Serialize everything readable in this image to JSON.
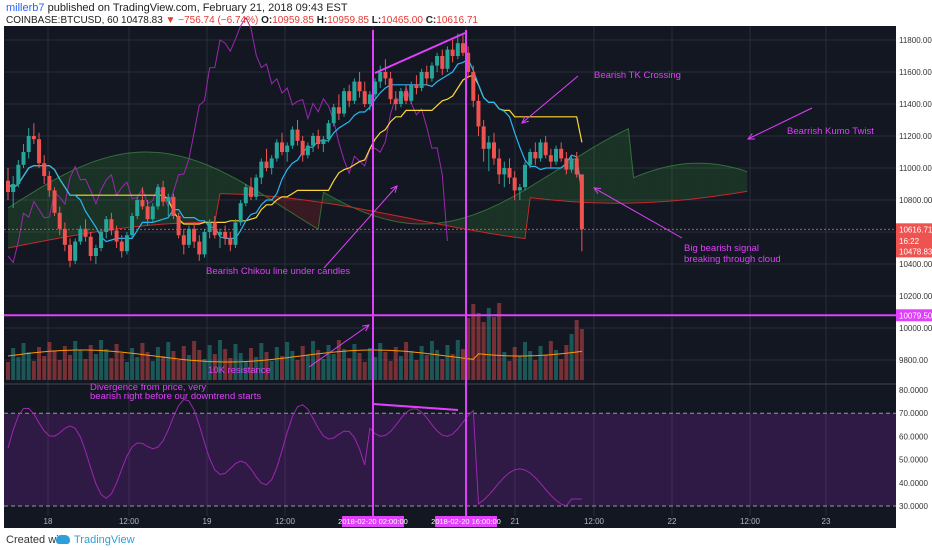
{
  "header": {
    "user": "millerb7",
    "published": "published on TradingView.com, February 21, 2018 09:43 EST",
    "symbol": "COINBASE:BTCUSD, 60",
    "last": "10478.83",
    "change": "−756.74 (−6.74%)",
    "o_label": "O:",
    "o": "10959.85",
    "h_label": "H:",
    "h": "10959.85",
    "l_label": "L:",
    "l": "10465.00",
    "c_label": "C:",
    "c": "10616.71"
  },
  "footer": {
    "created": "Created with",
    "brand": "TradingView"
  },
  "colors": {
    "background": "#131722",
    "up": "#26a69a",
    "down": "#ef5350",
    "annotation": "#e040fb",
    "tenkan": "#29b6f6",
    "kijun": "#fdd835",
    "senkou_b": "#c62828",
    "chikou": "#9c27b0",
    "volume_ma": "#ff9800",
    "rsi": "#9c27b0"
  },
  "chart_data": {
    "type": "candlestick",
    "price_axis": [
      "11800.00",
      "11600.00",
      "11400.00",
      "11200.00",
      "11000.00",
      "10800.00",
      "10600.00",
      "10400.00",
      "10200.00",
      "10000.00",
      "9800.00"
    ],
    "volume_overlay_axis": [
      "10000.00",
      "9800.00"
    ],
    "rsi_axis": [
      "80.0000",
      "70.0000",
      "60.0000",
      "50.0000",
      "40.0000",
      "30.0000"
    ],
    "time_axis": [
      "18",
      "12:00",
      "19",
      "12:00",
      "2018-02-20 02:00:00",
      "2018-02-20 16:00:00",
      "21",
      "12:00",
      "22",
      "12:00",
      "23"
    ],
    "price_labels": [
      {
        "label": "10616.71",
        "value": 10616.71
      },
      {
        "label": "16:22",
        "value": 10545
      },
      {
        "label": "10478.83",
        "value": 10478.83
      },
      {
        "label": "10079.50",
        "value": 10079.5
      }
    ],
    "candles_hourly_ohlc": [
      [
        10920,
        11000,
        10800,
        10850
      ],
      [
        10850,
        10950,
        10750,
        10900
      ],
      [
        10900,
        11050,
        10880,
        11020
      ],
      [
        11020,
        11150,
        11000,
        11100
      ],
      [
        11100,
        11250,
        11060,
        11200
      ],
      [
        11200,
        11280,
        11150,
        11180
      ],
      [
        11180,
        11220,
        11000,
        11030
      ],
      [
        11030,
        11080,
        10900,
        10950
      ],
      [
        10950,
        10980,
        10820,
        10860
      ],
      [
        10860,
        10880,
        10700,
        10720
      ],
      [
        10720,
        10760,
        10580,
        10620
      ],
      [
        10620,
        10660,
        10480,
        10520
      ],
      [
        10520,
        10560,
        10380,
        10420
      ],
      [
        10420,
        10560,
        10400,
        10540
      ],
      [
        10540,
        10640,
        10520,
        10620
      ],
      [
        10620,
        10680,
        10540,
        10570
      ],
      [
        10570,
        10600,
        10420,
        10450
      ],
      [
        10450,
        10520,
        10400,
        10500
      ],
      [
        10500,
        10620,
        10480,
        10600
      ],
      [
        10600,
        10700,
        10560,
        10680
      ],
      [
        10680,
        10720,
        10580,
        10610
      ],
      [
        10610,
        10640,
        10500,
        10540
      ],
      [
        10540,
        10580,
        10440,
        10480
      ],
      [
        10480,
        10600,
        10460,
        10580
      ],
      [
        10580,
        10720,
        10560,
        10700
      ],
      [
        10700,
        10820,
        10680,
        10800
      ],
      [
        10800,
        10880,
        10740,
        10760
      ],
      [
        10760,
        10800,
        10640,
        10680
      ],
      [
        10680,
        10780,
        10660,
        10760
      ],
      [
        10760,
        10900,
        10740,
        10880
      ],
      [
        10880,
        10920,
        10760,
        10790
      ],
      [
        10790,
        10840,
        10700,
        10820
      ],
      [
        10820,
        10840,
        10680,
        10700
      ],
      [
        10700,
        10720,
        10560,
        10580
      ],
      [
        10580,
        10620,
        10460,
        10520
      ],
      [
        10520,
        10640,
        10500,
        10620
      ],
      [
        10620,
        10660,
        10500,
        10540
      ],
      [
        10540,
        10580,
        10420,
        10460
      ],
      [
        10460,
        10620,
        10440,
        10600
      ],
      [
        10600,
        10680,
        10560,
        10660
      ],
      [
        10660,
        10700,
        10560,
        10580
      ],
      [
        10580,
        10620,
        10500,
        10600
      ],
      [
        10600,
        10640,
        10520,
        10560
      ],
      [
        10560,
        10600,
        10480,
        10520
      ],
      [
        10520,
        10680,
        10500,
        10660
      ],
      [
        10660,
        10800,
        10640,
        10780
      ],
      [
        10780,
        10900,
        10760,
        10880
      ],
      [
        10880,
        10940,
        10800,
        10820
      ],
      [
        10820,
        10960,
        10800,
        10940
      ],
      [
        10940,
        11060,
        10900,
        11040
      ],
      [
        11040,
        11120,
        10980,
        11000
      ],
      [
        11000,
        11080,
        10960,
        11060
      ],
      [
        11060,
        11180,
        11040,
        11160
      ],
      [
        11160,
        11220,
        11080,
        11100
      ],
      [
        11100,
        11160,
        11040,
        11140
      ],
      [
        11140,
        11260,
        11120,
        11240
      ],
      [
        11240,
        11300,
        11140,
        11170
      ],
      [
        11170,
        11200,
        11040,
        11080
      ],
      [
        11080,
        11160,
        11060,
        11140
      ],
      [
        11140,
        11220,
        11100,
        11200
      ],
      [
        11200,
        11240,
        11120,
        11150
      ],
      [
        11150,
        11200,
        11100,
        11180
      ],
      [
        11180,
        11300,
        11160,
        11280
      ],
      [
        11280,
        11400,
        11260,
        11380
      ],
      [
        11380,
        11460,
        11300,
        11340
      ],
      [
        11340,
        11500,
        11320,
        11480
      ],
      [
        11480,
        11520,
        11380,
        11420
      ],
      [
        11420,
        11560,
        11400,
        11540
      ],
      [
        11540,
        11600,
        11440,
        11480
      ],
      [
        11480,
        11540,
        11380,
        11400
      ],
      [
        11400,
        11480,
        11360,
        11460
      ],
      [
        11460,
        11560,
        11440,
        11540
      ],
      [
        11540,
        11640,
        11500,
        11600
      ],
      [
        11600,
        11680,
        11520,
        11560
      ],
      [
        11560,
        11600,
        11400,
        11430
      ],
      [
        11430,
        11480,
        11360,
        11400
      ],
      [
        11400,
        11500,
        11380,
        11480
      ],
      [
        11480,
        11520,
        11400,
        11420
      ],
      [
        11420,
        11540,
        11400,
        11520
      ],
      [
        11520,
        11580,
        11460,
        11500
      ],
      [
        11500,
        11620,
        11480,
        11600
      ],
      [
        11600,
        11640,
        11520,
        11560
      ],
      [
        11560,
        11660,
        11540,
        11640
      ],
      [
        11640,
        11720,
        11600,
        11700
      ],
      [
        11700,
        11740,
        11580,
        11620
      ],
      [
        11620,
        11760,
        11600,
        11740
      ],
      [
        11740,
        11800,
        11660,
        11700
      ],
      [
        11700,
        11840,
        11680,
        11780
      ],
      [
        11780,
        11830,
        11700,
        11720
      ],
      [
        11720,
        11760,
        11560,
        11600
      ],
      [
        11600,
        11640,
        11380,
        11420
      ],
      [
        11420,
        11460,
        11200,
        11260
      ],
      [
        11260,
        11300,
        11040,
        11120
      ],
      [
        11120,
        11200,
        10980,
        11160
      ],
      [
        11160,
        11220,
        11020,
        11060
      ],
      [
        11060,
        11120,
        10900,
        10960
      ],
      [
        10960,
        11040,
        10880,
        11000
      ],
      [
        11000,
        11060,
        10900,
        10940
      ],
      [
        10940,
        10980,
        10800,
        10860
      ],
      [
        10860,
        10900,
        10800,
        10880
      ],
      [
        10880,
        11040,
        10860,
        11020
      ],
      [
        11020,
        11120,
        11000,
        11100
      ],
      [
        11100,
        11160,
        11020,
        11060
      ],
      [
        11060,
        11180,
        11040,
        11160
      ],
      [
        11160,
        11200,
        11060,
        11080
      ],
      [
        11080,
        11120,
        11000,
        11040
      ],
      [
        11040,
        11140,
        11020,
        11120
      ],
      [
        11120,
        11160,
        11040,
        11060
      ],
      [
        11060,
        11100,
        10960,
        10990
      ],
      [
        10990,
        11080,
        10970,
        11060
      ],
      [
        11060,
        11100,
        10940,
        10960
      ],
      [
        10960,
        10960,
        10480,
        10617
      ]
    ],
    "annotations": [
      {
        "text": "Bearish TK Crossing"
      },
      {
        "text": "Bearrish Kumo Twist"
      },
      {
        "text": "Bearish Chikou line under candles"
      },
      {
        "text": "Big bearish signal"
      },
      {
        "text": "breaking through cloud"
      },
      {
        "text": "10K resistance"
      },
      {
        "text": "Divergence from price, very"
      },
      {
        "text": "bearish right before our downtrend starts"
      }
    ]
  }
}
